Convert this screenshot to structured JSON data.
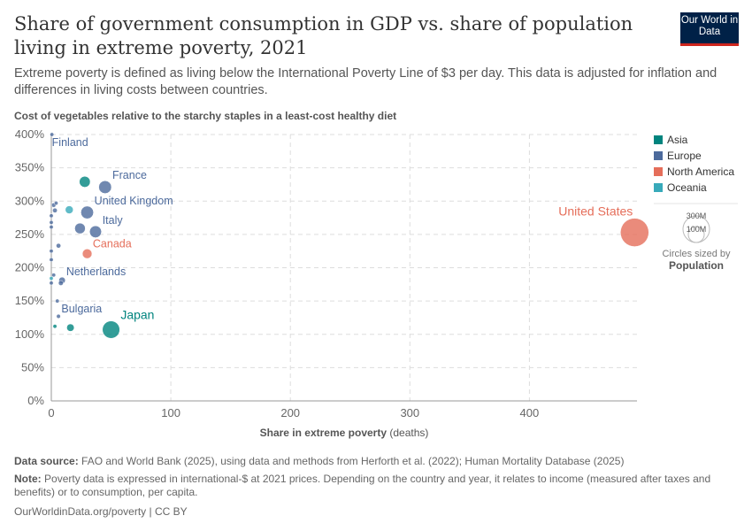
{
  "header": {
    "title": "Share of government consumption in GDP vs. share of population living in extreme poverty, 2021",
    "subtitle": "Extreme poverty is defined as living below the International Poverty Line of $3 per day. This data is adjusted for inflation and differences in living costs between countries.",
    "logo": "Our World in Data"
  },
  "footer": {
    "source_label": "Data source:",
    "source": "FAO and World Bank (2025), using data and methods from Herforth et al. (2022); Human Mortality Database (2025)",
    "note_label": "Note:",
    "note": "Poverty data is expressed in international-$ at 2021 prices. Depending on the country and year, it relates to income (measured after taxes and benefits) or to consumption, per capita.",
    "link": "OurWorldinData.org/poverty | CC BY"
  },
  "chart_data": {
    "type": "scatter",
    "ylabel": "Cost of vegetables relative to the starchy staples in a least-cost healthy diet",
    "xlabel": "Share in extreme poverty",
    "xlabel_unit": "(deaths)",
    "xlim": [
      0,
      490
    ],
    "ylim": [
      0,
      400
    ],
    "xticks": [
      0,
      100,
      200,
      300,
      400
    ],
    "yticks": [
      0,
      50,
      100,
      150,
      200,
      250,
      300,
      350,
      400
    ],
    "ytick_suffix": "%",
    "grid": true,
    "legend_placement": "right",
    "colors": {
      "Asia": "#00847e",
      "Europe": "#4c6a9c",
      "North America": "#e56e5a",
      "Oceania": "#38aaba"
    },
    "legend": [
      "Asia",
      "Europe",
      "North America",
      "Oceania"
    ],
    "size_legend": {
      "title": "Circles sized by",
      "variable": "Population",
      "values": [
        "300M",
        "100M"
      ]
    },
    "points": [
      {
        "label": "Finland",
        "x": 0.5,
        "y": 400,
        "region": "Europe",
        "pop": 5.5
      },
      {
        "label": "",
        "x": 28,
        "y": 329,
        "region": "Asia",
        "pop": 50
      },
      {
        "label": "France",
        "x": 45,
        "y": 321,
        "region": "Europe",
        "pop": 68
      },
      {
        "label": "United Kingdom",
        "x": 30,
        "y": 283,
        "region": "Europe",
        "pop": 67
      },
      {
        "label": "",
        "x": 15,
        "y": 287,
        "region": "Oceania",
        "pop": 26
      },
      {
        "label": "Italy",
        "x": 37,
        "y": 254,
        "region": "Europe",
        "pop": 59
      },
      {
        "label": "",
        "x": 24,
        "y": 259,
        "region": "Europe",
        "pop": 47
      },
      {
        "label": "Canada",
        "x": 30,
        "y": 221,
        "region": "North America",
        "pop": 38
      },
      {
        "label": "Japan",
        "x": 50,
        "y": 107,
        "region": "Asia",
        "pop": 125
      },
      {
        "label": "",
        "x": 16,
        "y": 110,
        "region": "Asia",
        "pop": 23
      },
      {
        "label": "",
        "x": 3,
        "y": 112,
        "region": "Asia",
        "pop": 5
      },
      {
        "label": "Bulgaria",
        "x": 6,
        "y": 127,
        "region": "Europe",
        "pop": 6.9
      },
      {
        "label": "",
        "x": 5,
        "y": 150,
        "region": "Europe",
        "pop": 4
      },
      {
        "label": "Netherlands",
        "x": 9,
        "y": 181,
        "region": "Europe",
        "pop": 17.5
      },
      {
        "label": "",
        "x": 8,
        "y": 177,
        "region": "Europe",
        "pop": 10
      },
      {
        "label": "",
        "x": 2,
        "y": 189,
        "region": "Europe",
        "pop": 5
      },
      {
        "label": "",
        "x": 0,
        "y": 184,
        "region": "Oceania",
        "pop": 5
      },
      {
        "label": "",
        "x": 0,
        "y": 177,
        "region": "Europe",
        "pop": 3
      },
      {
        "label": "",
        "x": 0,
        "y": 212,
        "region": "Europe",
        "pop": 3
      },
      {
        "label": "",
        "x": 0,
        "y": 225,
        "region": "Europe",
        "pop": 3
      },
      {
        "label": "",
        "x": 6,
        "y": 233,
        "region": "Europe",
        "pop": 9
      },
      {
        "label": "",
        "x": 0,
        "y": 261,
        "region": "Europe",
        "pop": 4
      },
      {
        "label": "",
        "x": 0,
        "y": 268,
        "region": "Europe",
        "pop": 6
      },
      {
        "label": "",
        "x": 0,
        "y": 278,
        "region": "Europe",
        "pop": 2
      },
      {
        "label": "",
        "x": 3,
        "y": 286,
        "region": "Europe",
        "pop": 9
      },
      {
        "label": "",
        "x": 2,
        "y": 294,
        "region": "Europe",
        "pop": 8
      },
      {
        "label": "",
        "x": 4,
        "y": 297,
        "region": "Europe",
        "pop": 6
      },
      {
        "label": "United States",
        "x": 488,
        "y": 253,
        "region": "North America",
        "pop": 335
      }
    ]
  }
}
